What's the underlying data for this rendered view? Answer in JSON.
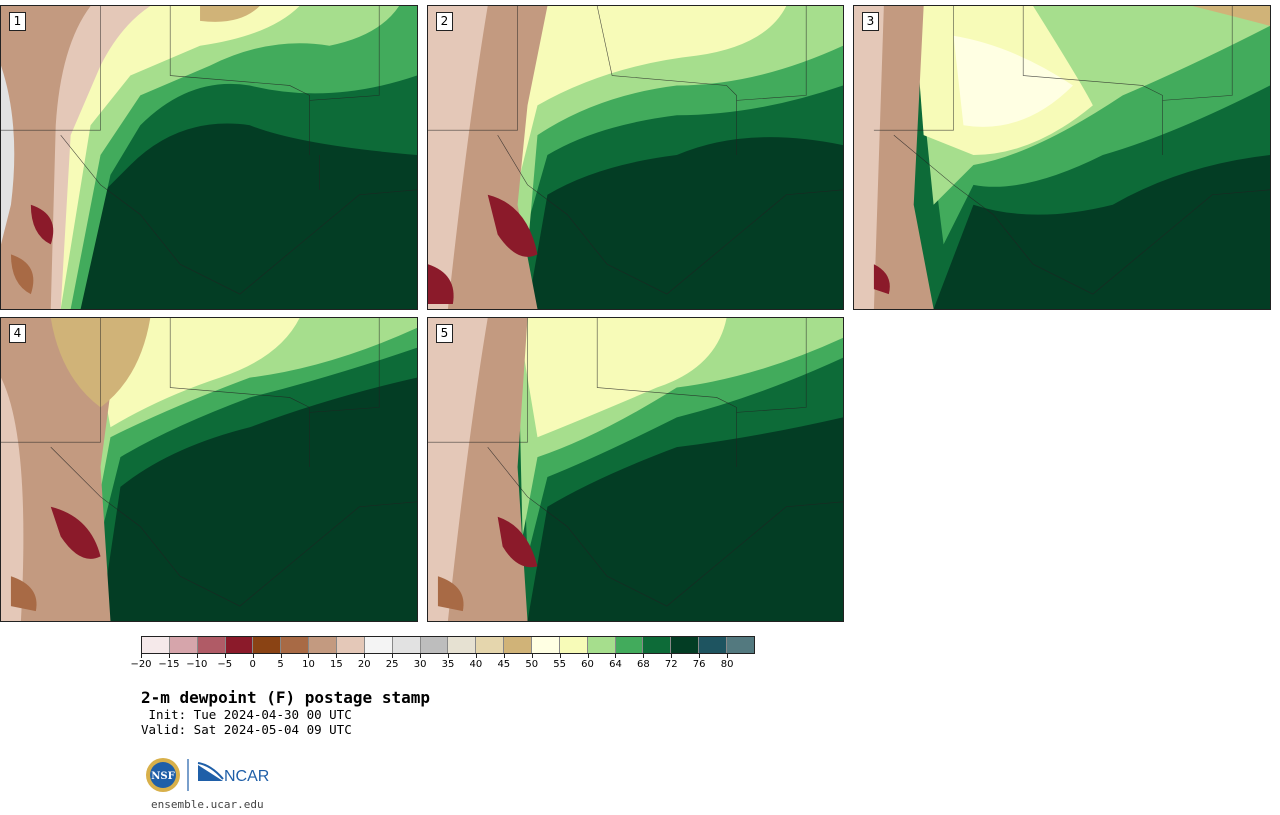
{
  "panels": [
    {
      "number": "1"
    },
    {
      "number": "2"
    },
    {
      "number": "3"
    },
    {
      "number": "4"
    },
    {
      "number": "5"
    }
  ],
  "colorbar": {
    "colors": [
      "#f5e9ea",
      "#d6a5ab",
      "#b05b66",
      "#8b1a2a",
      "#8a4314",
      "#a86a45",
      "#c39a80",
      "#e4c8b8",
      "#f4f4f4",
      "#e2e2e2",
      "#bdbdbd",
      "#e6e1d2",
      "#e5d6ad",
      "#d0b378",
      "#ffffe3",
      "#f7fbb8",
      "#a6de8d",
      "#42ab5c",
      "#0d6b38",
      "#033d24",
      "#1e5460",
      "#53797f"
    ],
    "ticks": [
      "−20",
      "−15",
      "−10",
      "−5",
      "0",
      "5",
      "10",
      "15",
      "20",
      "25",
      "30",
      "35",
      "40",
      "45",
      "50",
      "55",
      "60",
      "64",
      "68",
      "72",
      "76",
      "80"
    ]
  },
  "title": "2-m dewpoint (F) postage stamp",
  "init": " Init: Tue 2024-04-30 00 UTC",
  "valid": "Valid: Sat 2024-05-04 09 UTC",
  "logo": {
    "nsf": "NSF",
    "ncar": "NCAR"
  },
  "url": "ensemble.ucar.edu"
}
